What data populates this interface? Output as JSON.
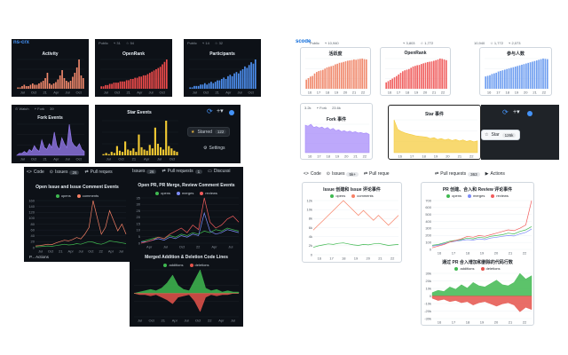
{
  "colors": {
    "dark_bg": "#0d1117",
    "dark_text": "#c9d1d9",
    "light_bg": "#ffffff",
    "activity_dark": "#f0886b",
    "openrank_dark": "#ee4b4b",
    "participants_dark": "#4d8ff0",
    "fork_dark": "#9a7ef5",
    "star_dark": "#f0c832",
    "activity_light": "#f08a6e",
    "openrank_light": "#f06060",
    "participants_light": "#6f9ef0",
    "fork_light": "#a78bfa",
    "star_light": "#f5cc40",
    "opens": "#3fb950",
    "comments": "#f78166",
    "merges": "#7c8cf8",
    "reviews": "#f25c5c",
    "additions": "#3fb950",
    "deletions": "#e5534b"
  },
  "left": {
    "brand": "ns-crx",
    "activity": {
      "title": "Activity",
      "header": [
        "Public",
        "⑂ 113",
        "☆ 76"
      ],
      "x_ticks": [
        "Jul",
        "Oct",
        "21",
        "Apr",
        "Jul",
        "Oct"
      ]
    },
    "openrank": {
      "title": "OpenRank",
      "header": [
        "Public",
        "⑂ 31",
        "☆ 54"
      ],
      "x_ticks": [
        "Jul",
        "Oct",
        "21",
        "Apr",
        "Jul",
        "Oct"
      ]
    },
    "participants": {
      "title": "Participants",
      "header": [
        "Public",
        "⑂ 14",
        "☆ 32"
      ],
      "x_ticks": [
        "Jul",
        "Oct",
        "21",
        "Apr",
        "Jul",
        "Oct"
      ]
    },
    "fork_events": {
      "title": "Fork Events",
      "toolbar": [
        "⊙ Watch",
        "⑂ Fork",
        "39"
      ],
      "x_ticks": [
        "Jul",
        "Oct",
        "21",
        "Apr",
        "Jul",
        "Oct"
      ]
    },
    "star_events": {
      "title": "Star Events",
      "x_ticks": [
        "Jul",
        "Oct",
        "21",
        "Apr",
        "Jul",
        "Oct"
      ]
    },
    "starred_btn": {
      "label": "Starred",
      "count": "122"
    },
    "settings": "Settings",
    "tabs": {
      "code": "Code",
      "issues": "Issues",
      "issues_count": "26",
      "pull": "Pull reques"
    },
    "issues_chart": {
      "title": "Open Issue and Issue Comment Events",
      "legend": [
        "opens",
        "comments"
      ],
      "y_ticks": [
        "0",
        "20",
        "40",
        "60",
        "80",
        "100",
        "120",
        "140",
        "160"
      ],
      "x_ticks": [
        "Jul",
        "Oct",
        "21",
        "Apr",
        "Jul",
        "Oct",
        "22",
        "Apr",
        "Jul"
      ],
      "footer": "P...  Actions"
    },
    "pr_tabs": {
      "issues": "Issues",
      "issues_count": "26",
      "pull": "Pull requests",
      "pull_count": "1",
      "discuss": "Discussi"
    },
    "pr_chart": {
      "title": "Open PR, PR Merge, Review Comment Events",
      "legend": [
        "opens",
        "merges",
        "reviews"
      ],
      "y_ticks": [
        "0",
        "5",
        "10",
        "15",
        "20",
        "25",
        "30",
        "35"
      ],
      "x_ticks": [
        "Apr",
        "Jul",
        "Oct",
        "22",
        "Apr",
        "Jul"
      ]
    },
    "code_chart": {
      "title": "Merged Addition & Deletion Code Lines",
      "legend": [
        "additions",
        "deletions"
      ],
      "x_ticks": [
        "Jul",
        "Oct",
        "21",
        "Apr",
        "Jul",
        "Oct",
        "22",
        "Apr",
        "Jul"
      ]
    }
  },
  "right": {
    "brand": "scode",
    "activity": {
      "title": "活跃度",
      "header": [
        "Public",
        "⑂ 10,940",
        "☆ 1,772",
        "⑂ 28,100"
      ],
      "x_ticks": [
        "16",
        "17",
        "18",
        "19",
        "20",
        "21",
        "22"
      ]
    },
    "openrank": {
      "title": "OpenRank",
      "header": [
        "⑂ 3,803",
        "☆ 1,772",
        "⑂ 28,100"
      ],
      "x_ticks": [
        "16",
        "17",
        "18",
        "19",
        "20",
        "21",
        "22"
      ]
    },
    "participants": {
      "title": "参与人数",
      "header": [
        "10,940",
        "☆ 1,772",
        "⑂ 2,073"
      ],
      "x_ticks": [
        "16",
        "17",
        "18",
        "19",
        "20",
        "21",
        "22"
      ]
    },
    "fork": {
      "title": "Fork 事件",
      "toolbar": [
        "3.2k",
        "⑂ Fork",
        "23.6k"
      ],
      "x_ticks": [
        "16",
        "17",
        "18",
        "19",
        "20",
        "21",
        "22"
      ]
    },
    "star": {
      "title": "Star 事件",
      "x_ticks": [
        "16",
        "17",
        "18",
        "19",
        "20",
        "21",
        "22"
      ]
    },
    "star_btn": {
      "label": "Star",
      "count": "126k"
    },
    "tabs": {
      "code": "Code",
      "issues": "Issues",
      "issues_count": "5k+",
      "pull": "Pull reque",
      "pull2": "Pull requests",
      "pull2_count": "363",
      "actions": "Actions"
    },
    "issue_chart": {
      "title": "Issue 创建和 Issue 评论事件",
      "legend": [
        "opens",
        "comments"
      ],
      "y_ticks": [
        "0",
        "2k",
        "4k",
        "6k",
        "8k",
        "10k",
        "12k"
      ],
      "x_ticks": [
        "16",
        "17",
        "18",
        "19",
        "20",
        "21",
        "22"
      ]
    },
    "pr_chart": {
      "title": "PR 创建、合入和 Review 评论事件",
      "legend": [
        "opens",
        "merges",
        "reviews"
      ],
      "y_ticks": [
        "0",
        "100",
        "200",
        "300",
        "400",
        "500",
        "600",
        "700"
      ],
      "x_ticks": [
        "16",
        "17",
        "18",
        "19",
        "20",
        "21",
        "22"
      ]
    },
    "code_chart": {
      "title": "通过 PR 合入增加和删除的代码行数",
      "legend": [
        "additions",
        "deletions"
      ],
      "y_ticks": [
        "-30k",
        "-20k",
        "-10k",
        "0",
        "10k",
        "20k",
        "30k"
      ],
      "x_ticks": [
        "16",
        "17",
        "18",
        "19",
        "20",
        "21",
        "22"
      ]
    }
  },
  "chart_data": [
    {
      "type": "bar",
      "title": "Activity",
      "values": [
        1,
        1,
        2,
        3,
        2,
        2,
        3,
        4,
        3,
        3,
        4,
        5,
        6,
        8,
        12,
        4,
        3,
        4,
        5,
        7,
        10,
        14,
        8,
        6,
        5,
        6,
        9,
        12,
        16,
        22,
        10,
        8
      ]
    },
    {
      "type": "bar",
      "title": "OpenRank",
      "values": [
        2,
        2,
        3,
        3,
        4,
        4,
        5,
        5,
        5,
        6,
        6,
        6,
        7,
        7,
        8,
        8,
        9,
        9,
        10,
        10,
        11,
        11,
        12,
        13,
        14,
        15,
        16,
        17,
        18,
        20,
        22,
        24
      ]
    },
    {
      "type": "bar",
      "title": "Participants",
      "values": [
        1,
        1,
        2,
        2,
        2,
        3,
        3,
        4,
        3,
        4,
        5,
        4,
        5,
        6,
        6,
        7,
        8,
        7,
        9,
        10,
        9,
        11,
        12,
        11,
        13,
        14,
        16,
        15,
        17,
        19,
        18,
        21
      ]
    },
    {
      "type": "area",
      "title": "Fork Events",
      "values": [
        0,
        1,
        1,
        2,
        1,
        3,
        2,
        5,
        3,
        2,
        8,
        4,
        3,
        6,
        4,
        12,
        5,
        3,
        9,
        6,
        4,
        16,
        7,
        5,
        4,
        6,
        3,
        2
      ]
    },
    {
      "type": "bar",
      "title": "Star Events",
      "values": [
        1,
        2,
        1,
        3,
        2,
        8,
        4,
        3,
        12,
        5,
        4,
        6,
        3,
        18,
        7,
        5,
        4,
        9,
        6,
        24,
        10,
        7,
        5,
        30,
        8,
        6,
        4,
        3
      ]
    },
    {
      "type": "line",
      "title": "Open Issue and Issue Comment Events",
      "series": [
        {
          "name": "opens",
          "values": [
            2,
            3,
            4,
            5,
            4,
            6,
            8,
            10,
            8,
            9,
            12,
            10,
            14,
            18,
            16,
            12,
            10,
            14,
            20,
            18,
            16,
            14,
            12
          ]
        },
        {
          "name": "comments",
          "values": [
            5,
            6,
            8,
            10,
            9,
            14,
            18,
            22,
            20,
            24,
            30,
            26,
            40,
            60,
            140,
            90,
            40,
            60,
            110,
            80,
            50,
            70,
            40
          ]
        }
      ]
    },
    {
      "type": "line",
      "title": "Open PR, PR Merge, Review Comment Events",
      "series": [
        {
          "name": "opens",
          "values": [
            1,
            2,
            3,
            4,
            3,
            5,
            4,
            6,
            5,
            7,
            6,
            8,
            7,
            9,
            8,
            10,
            9,
            8
          ]
        },
        {
          "name": "merges",
          "values": [
            1,
            1,
            2,
            3,
            2,
            4,
            3,
            5,
            4,
            6,
            5,
            20,
            8,
            6,
            7,
            9,
            8,
            7
          ]
        },
        {
          "name": "reviews",
          "values": [
            0,
            1,
            2,
            4,
            3,
            6,
            8,
            10,
            7,
            12,
            9,
            30,
            14,
            10,
            12,
            16,
            18,
            14
          ]
        }
      ]
    },
    {
      "type": "area",
      "title": "Merged Addition & Deletion Code Lines",
      "series": [
        {
          "name": "additions",
          "values": [
            0,
            1,
            2,
            3,
            2,
            4,
            8,
            14,
            6,
            3,
            2,
            10,
            18,
            4,
            2,
            3,
            1,
            2,
            1,
            1
          ]
        },
        {
          "name": "deletions",
          "values": [
            0,
            -1,
            -1,
            -2,
            -1,
            -3,
            -5,
            -8,
            -3,
            -2,
            -1,
            -6,
            -14,
            -3,
            -1,
            -2,
            -1,
            -1,
            0,
            0
          ]
        }
      ]
    },
    {
      "type": "bar",
      "title": "活跃度",
      "values": [
        30,
        35,
        40,
        42,
        50,
        55,
        58,
        60,
        62,
        66,
        70,
        72,
        74,
        76,
        80,
        82,
        85,
        86,
        88,
        90,
        92,
        93,
        94,
        96,
        95,
        97,
        98,
        99,
        97,
        96
      ]
    },
    {
      "type": "bar",
      "title": "OpenRank",
      "values": [
        20,
        24,
        28,
        32,
        36,
        40,
        45,
        50,
        55,
        58,
        60,
        62,
        66,
        70,
        72,
        74,
        75,
        78,
        80,
        82,
        84,
        85,
        86,
        88,
        90,
        92,
        95,
        94,
        92,
        90
      ]
    },
    {
      "type": "bar",
      "title": "参与人数",
      "values": [
        40,
        42,
        44,
        48,
        50,
        52,
        56,
        58,
        60,
        62,
        64,
        66,
        68,
        70,
        72,
        74,
        76,
        78,
        80,
        82,
        84,
        86,
        88,
        90,
        92,
        94,
        96,
        98,
        97,
        96
      ]
    },
    {
      "type": "area",
      "title": "Fork 事件",
      "values": [
        60,
        58,
        62,
        55,
        57,
        54,
        56,
        52,
        55,
        50,
        53,
        48,
        50,
        46,
        48,
        45,
        47,
        44,
        46,
        43,
        44,
        42,
        43,
        40
      ]
    },
    {
      "type": "area",
      "title": "Star 事件",
      "values": [
        70,
        50,
        45,
        42,
        40,
        38,
        36,
        35,
        34,
        33,
        30,
        32,
        28,
        30,
        27,
        29,
        26,
        28,
        25,
        27,
        24,
        26,
        23,
        25
      ]
    },
    {
      "type": "line",
      "title": "Issue 创建和 Issue 评论事件",
      "series": [
        {
          "name": "opens",
          "values": [
            1.5,
            1.8,
            2.0,
            2.2,
            2.1,
            2.3,
            2.4,
            2.2,
            2.0,
            1.9,
            2.1,
            2.0,
            2.2,
            2.3,
            2.1,
            1.9,
            2.0,
            2.1
          ]
        },
        {
          "name": "comments",
          "values": [
            5,
            6,
            7,
            8,
            9,
            10,
            11,
            10,
            9,
            8,
            9,
            8,
            7,
            8,
            7,
            6,
            7,
            8
          ]
        }
      ]
    },
    {
      "type": "line",
      "title": "PR 创建、合入和 Review 评论事件",
      "series": [
        {
          "name": "opens",
          "values": [
            50,
            60,
            80,
            100,
            110,
            120,
            140,
            130,
            150,
            140,
            160,
            170,
            180,
            200,
            190,
            220,
            240,
            280
          ]
        },
        {
          "name": "merges",
          "values": [
            40,
            50,
            70,
            90,
            100,
            110,
            120,
            115,
            130,
            120,
            140,
            150,
            160,
            170,
            165,
            190,
            210,
            250
          ]
        },
        {
          "name": "reviews",
          "values": [
            20,
            40,
            60,
            90,
            110,
            130,
            160,
            150,
            170,
            160,
            180,
            200,
            220,
            240,
            230,
            260,
            300,
            600
          ]
        }
      ]
    },
    {
      "type": "area",
      "title": "通过 PR 合入增加和删除的代码行数",
      "series": [
        {
          "name": "additions",
          "values": [
            3,
            5,
            4,
            8,
            6,
            10,
            7,
            12,
            9,
            8,
            11,
            14,
            10,
            9,
            12,
            20,
            15,
            18
          ]
        },
        {
          "name": "deletions",
          "values": [
            -2,
            -4,
            -3,
            -5,
            -4,
            -6,
            -5,
            -8,
            -6,
            -5,
            -7,
            -9,
            -7,
            -6,
            -8,
            -14,
            -10,
            -12
          ]
        }
      ]
    }
  ]
}
